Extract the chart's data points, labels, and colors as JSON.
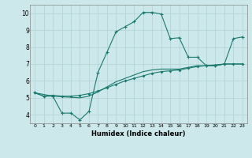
{
  "xlabel": "Humidex (Indice chaleur)",
  "xlim": [
    -0.5,
    23.5
  ],
  "ylim": [
    3.5,
    10.5
  ],
  "xticks": [
    0,
    1,
    2,
    3,
    4,
    5,
    6,
    7,
    8,
    9,
    10,
    11,
    12,
    13,
    14,
    15,
    16,
    17,
    18,
    19,
    20,
    21,
    22,
    23
  ],
  "yticks": [
    4,
    5,
    6,
    7,
    8,
    9,
    10
  ],
  "bg_color": "#cce8ea",
  "line_color": "#1a7a6e",
  "grid_color": "#b0d0d4",
  "line1_x": [
    0,
    1,
    2,
    3,
    4,
    5,
    6,
    7,
    8,
    9,
    10,
    11,
    12,
    13,
    14,
    15,
    16,
    17,
    18,
    19,
    20,
    21,
    22,
    23
  ],
  "line1_y": [
    5.3,
    5.1,
    5.1,
    4.1,
    4.1,
    3.7,
    4.2,
    6.5,
    7.7,
    8.9,
    9.2,
    9.5,
    10.05,
    10.05,
    9.95,
    8.5,
    8.55,
    7.4,
    7.4,
    6.9,
    6.9,
    7.0,
    8.5,
    8.6
  ],
  "line2_x": [
    0,
    1,
    2,
    3,
    4,
    5,
    6,
    7,
    8,
    9,
    10,
    11,
    12,
    13,
    14,
    15,
    16,
    17,
    18,
    19,
    20,
    21,
    22,
    23
  ],
  "line2_y": [
    5.3,
    5.1,
    5.15,
    5.1,
    5.1,
    5.15,
    5.25,
    5.4,
    5.6,
    5.8,
    6.0,
    6.15,
    6.3,
    6.45,
    6.55,
    6.6,
    6.65,
    6.75,
    6.85,
    6.9,
    6.9,
    7.0,
    7.0,
    7.0
  ],
  "line3_x": [
    0,
    2,
    5,
    6,
    7,
    8,
    9,
    10,
    11,
    12,
    13,
    14,
    15,
    16,
    17,
    18,
    19,
    20,
    21,
    22,
    23
  ],
  "line3_y": [
    5.3,
    5.1,
    5.0,
    5.1,
    5.35,
    5.65,
    5.95,
    6.15,
    6.35,
    6.55,
    6.65,
    6.7,
    6.7,
    6.7,
    6.8,
    6.9,
    6.9,
    6.95,
    7.0,
    7.0,
    7.0
  ]
}
